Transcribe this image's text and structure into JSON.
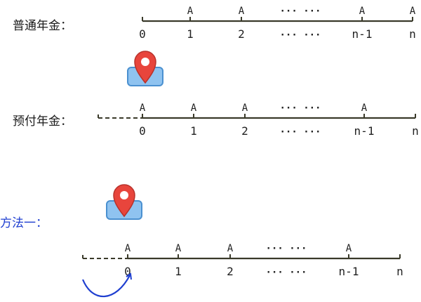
{
  "labels": {
    "ordinary": "普通年金：",
    "prepaid": "预付年金：",
    "method": "方法一："
  },
  "timelines": {
    "ordinary": {
      "ticks": [
        "0",
        "1",
        "2",
        "··· ···",
        "n-1",
        "n"
      ],
      "payments": [
        "",
        "A",
        "A",
        "··· ···",
        "A",
        "A"
      ],
      "leading_dash": false
    },
    "prepaid": {
      "ticks": [
        "0",
        "1",
        "2",
        "··· ···",
        "n-1",
        "n"
      ],
      "payments": [
        "A",
        "A",
        "A",
        "··· ···",
        "A",
        ""
      ],
      "leading_dash": true
    },
    "method": {
      "ticks": [
        "0",
        "1",
        "2",
        "··· ···",
        "n-1",
        "n"
      ],
      "payments": [
        "A",
        "A",
        "A",
        "··· ···",
        "A",
        ""
      ],
      "leading_dash": true
    }
  },
  "colors": {
    "axis": "#3a3a2a",
    "pin": "#e8453c",
    "pin_base": "#8fc3f0",
    "arrow": "#1f3fd0",
    "method_text": "#1f3fd0"
  },
  "icons": [
    "location-pin-icon",
    "location-pin-icon"
  ]
}
